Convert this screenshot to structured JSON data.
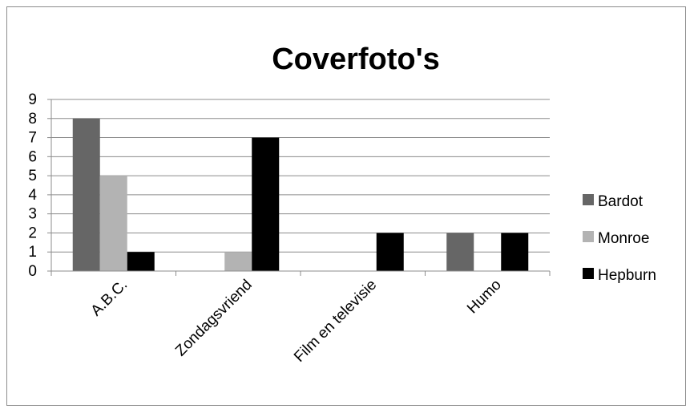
{
  "chart_data": {
    "type": "bar",
    "title": "Coverfoto's",
    "xlabel": "",
    "ylabel": "",
    "categories": [
      "A.B.C.",
      "Zondagsvriend",
      "Film en televisie",
      "Humo"
    ],
    "series": [
      {
        "name": "Bardot",
        "color": "#666666",
        "values": [
          8,
          0,
          0,
          2
        ]
      },
      {
        "name": "Monroe",
        "color": "#b3b3b3",
        "values": [
          5,
          1,
          0,
          0
        ]
      },
      {
        "name": "Hepburn",
        "color": "#000000",
        "values": [
          1,
          7,
          2,
          2
        ]
      }
    ],
    "ylim": [
      0,
      9
    ],
    "yticks": [
      "0",
      "1",
      "2",
      "3",
      "4",
      "5",
      "6",
      "7",
      "8",
      "9"
    ],
    "grid": true,
    "legend_position": "right"
  }
}
